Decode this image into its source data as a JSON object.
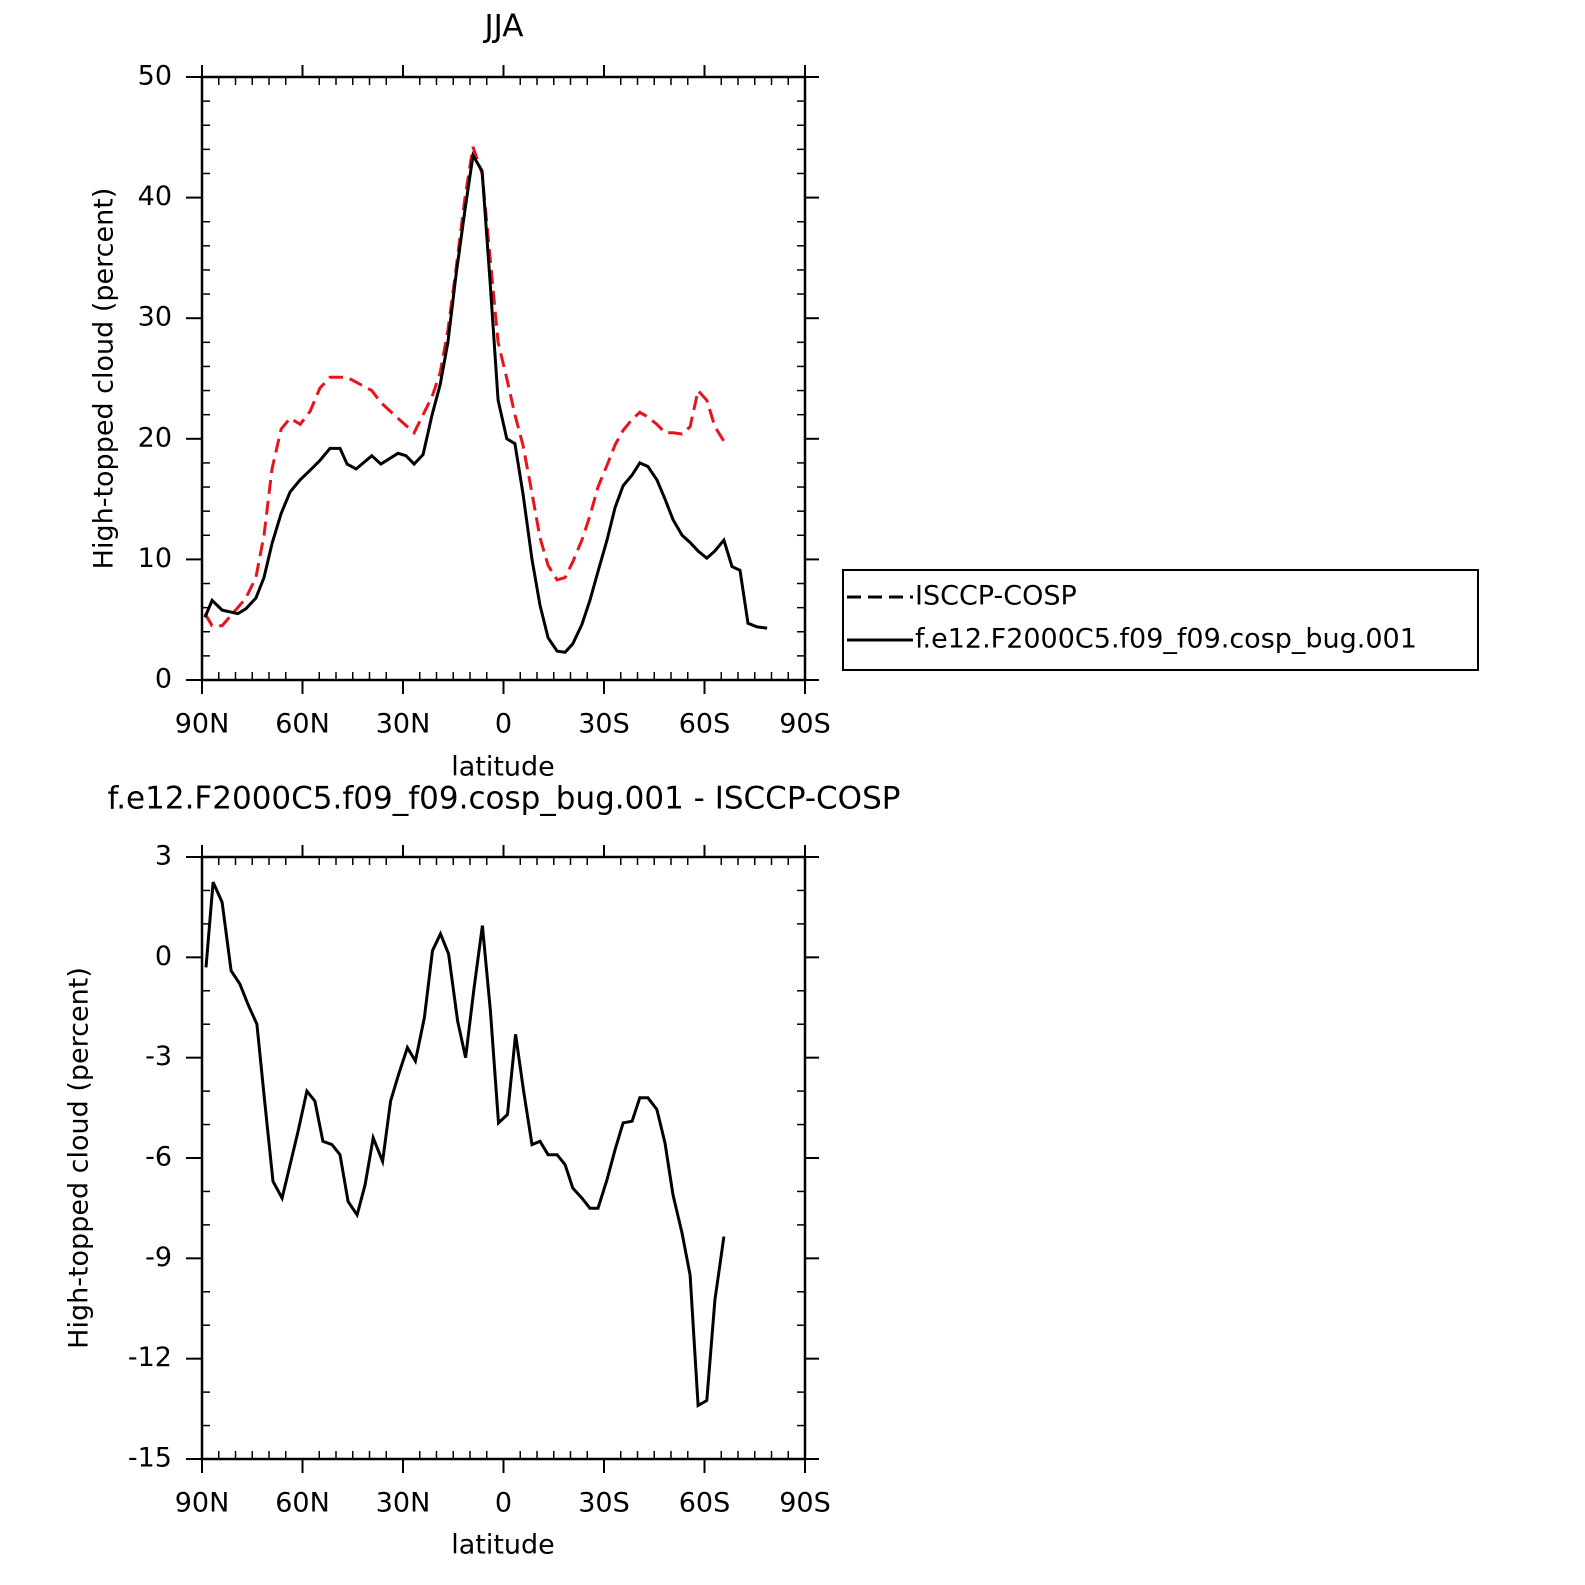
{
  "chart_data": [
    {
      "type": "line",
      "title": "JJA",
      "xlabel": "latitude",
      "ylabel": "High-topped cloud (percent)",
      "x": [
        89.1,
        87.0,
        84.0,
        79.3,
        76.9,
        73.9,
        71.5,
        69.1,
        66.4,
        63.7,
        60.7,
        57.7,
        54.8,
        51.8,
        48.8,
        46.7,
        44.0,
        39.3,
        36.6,
        31.5,
        29.1,
        26.7,
        24.0,
        21.3,
        18.9,
        16.6,
        14.2,
        11.5,
        9.1,
        6.4,
        4.0,
        1.6,
        -1.0,
        -3.4,
        -5.8,
        -8.5,
        -10.9,
        -13.3,
        -16.0,
        -18.4,
        -20.7,
        -23.4,
        -25.8,
        -28.2,
        -30.9,
        -33.3,
        -35.7,
        -38.4,
        -40.7,
        -43.1,
        -45.8,
        -48.2,
        -50.6,
        -53.3,
        -55.7,
        -58.1,
        -60.7,
        -63.1,
        -65.8,
        -68.2,
        -70.6,
        -73.0,
        -75.7,
        -78.7
      ],
      "series": [
        {
          "name": "ISCCP-COSP",
          "color": "#e8141c",
          "style": "dashed",
          "values": [
            5.5,
            4.5,
            4.5,
            6,
            6.8,
            8.5,
            12,
            17.5,
            20.8,
            21.7,
            21.2,
            22.3,
            24.2,
            25.1,
            25.1,
            25.1,
            24.7,
            24,
            23,
            21.7,
            21.1,
            20.5,
            22,
            23.5,
            25.5,
            29,
            34,
            40,
            44.2,
            42,
            35,
            28,
            25,
            22,
            19.5,
            15.5,
            11.8,
            9.5,
            8.3,
            8.5,
            9.8,
            11.6,
            13.6,
            16,
            17.8,
            19.5,
            20.7,
            21.6,
            22.2,
            21.8,
            21.2,
            20.5,
            20.5,
            20.4,
            21,
            24,
            23.2,
            21,
            19.8,
            null,
            null,
            null,
            null,
            null
          ]
        },
        {
          "name": "f.e12.F2000C5.f09_f09.cosp_bug.001",
          "color": "#000000",
          "style": "solid",
          "values": [
            5.2,
            6.6,
            5.8,
            5.5,
            5.9,
            6.8,
            8.5,
            11.3,
            13.8,
            15.6,
            16.6,
            17.4,
            18.2,
            19.2,
            19.2,
            17.9,
            17.5,
            18.6,
            17.9,
            18.8,
            18.6,
            17.9,
            18.7,
            22,
            24.5,
            28,
            33.5,
            39,
            43.5,
            42.2,
            33,
            23.2,
            20,
            19.6,
            15.5,
            10,
            6.2,
            3.5,
            2.4,
            2.3,
            3,
            4.6,
            6.6,
            9,
            11.6,
            14.3,
            16.1,
            17,
            18,
            17.7,
            16.6,
            15,
            13.3,
            12,
            11.4,
            10.7,
            10.1,
            10.7,
            11.6,
            9.4,
            9.1,
            4.7,
            4.4,
            4.3
          ]
        }
      ],
      "xlim": [
        90,
        -90
      ],
      "xticks": [
        {
          "value": 90,
          "label": "90N"
        },
        {
          "value": 60,
          "label": "60N"
        },
        {
          "value": 30,
          "label": "30N"
        },
        0,
        {
          "value": -30,
          "label": "30S"
        },
        {
          "value": -60,
          "label": "60S"
        },
        {
          "value": -90,
          "label": "90S"
        }
      ],
      "xminorticks": [
        85,
        80,
        75,
        70,
        65,
        55,
        50,
        45,
        40,
        35,
        25,
        20,
        15,
        10,
        5,
        -5,
        -10,
        -15,
        -20,
        -25,
        -35,
        -40,
        -45,
        -50,
        -55,
        -65,
        -70,
        -75,
        -80,
        -85
      ],
      "ylim": [
        0,
        50
      ],
      "yticks": [
        0,
        10,
        20,
        30,
        40,
        50
      ],
      "yminorticks": [
        2,
        4,
        6,
        8,
        12,
        14,
        16,
        18,
        22,
        24,
        26,
        28,
        32,
        34,
        36,
        38,
        42,
        44,
        46,
        48
      ],
      "legend": "right"
    },
    {
      "type": "line",
      "title": "f.e12.F2000C5.f09_f09.cosp_bug.001 - ISCCP-COSP",
      "xlabel": "latitude",
      "ylabel": "High-topped cloud (percent)",
      "x": [
        88.8,
        86.7,
        84.0,
        81.3,
        78.7,
        76.3,
        73.6,
        71.2,
        68.8,
        66.1,
        63.7,
        61.3,
        58.7,
        56.3,
        53.9,
        51.2,
        48.8,
        46.4,
        43.7,
        41.3,
        38.9,
        36.1,
        33.7,
        31.3,
        28.7,
        26.3,
        23.6,
        21.2,
        18.8,
        16.4,
        13.7,
        11.3,
        8.9,
        6.3,
        3.9,
        1.5,
        -1.2,
        -3.6,
        -6.0,
        -8.5,
        -10.9,
        -13.3,
        -16.0,
        -18.4,
        -20.7,
        -23.4,
        -25.8,
        -28.2,
        -30.9,
        -33.3,
        -35.7,
        -38.4,
        -40.7,
        -43.1,
        -45.8,
        -48.2,
        -50.6,
        -53.3,
        -55.7,
        -58.1,
        -60.7,
        -63.1,
        -65.8
      ],
      "values": [
        -0.3,
        2.25,
        1.65,
        -0.4,
        -0.8,
        -1.4,
        -2.0,
        -4.4,
        -6.7,
        -7.2,
        -6.2,
        -5.2,
        -4.0,
        -4.3,
        -5.5,
        -5.6,
        -5.9,
        -7.3,
        -7.7,
        -6.8,
        -5.4,
        -6.1,
        -4.3,
        -3.5,
        -2.7,
        -3.1,
        -1.8,
        0.2,
        0.7,
        0.1,
        -1.9,
        -3.0,
        -1.0,
        0.95,
        -1.6,
        -4.95,
        -4.7,
        -2.3,
        -4.0,
        -5.6,
        -5.5,
        -5.9,
        -5.9,
        -6.2,
        -6.9,
        -7.2,
        -7.5,
        -7.5,
        -6.65,
        -5.75,
        -4.95,
        -4.9,
        -4.2,
        -4.2,
        -4.55,
        -5.55,
        -7.1,
        -8.25,
        -9.5,
        -13.4,
        -13.25,
        -10.25,
        -8.35
      ],
      "color": "#000000",
      "xlim": [
        90,
        -90
      ],
      "xticks": [
        {
          "value": 90,
          "label": "90N"
        },
        {
          "value": 60,
          "label": "60N"
        },
        {
          "value": 30,
          "label": "30N"
        },
        0,
        {
          "value": -30,
          "label": "30S"
        },
        {
          "value": -60,
          "label": "60S"
        },
        {
          "value": -90,
          "label": "90S"
        }
      ],
      "xminorticks": [
        85,
        80,
        75,
        70,
        65,
        55,
        50,
        45,
        40,
        35,
        25,
        20,
        15,
        10,
        5,
        -5,
        -10,
        -15,
        -20,
        -25,
        -35,
        -40,
        -45,
        -50,
        -55,
        -65,
        -70,
        -75,
        -80,
        -85
      ],
      "ylim": [
        -15,
        3
      ],
      "yticks": [
        -15,
        -12,
        -9,
        -6,
        -3,
        0,
        3
      ],
      "yminorticks": [
        2,
        1,
        -1,
        -2,
        -4,
        -5,
        -7,
        -8,
        -10,
        -11,
        -13,
        -14
      ]
    }
  ]
}
